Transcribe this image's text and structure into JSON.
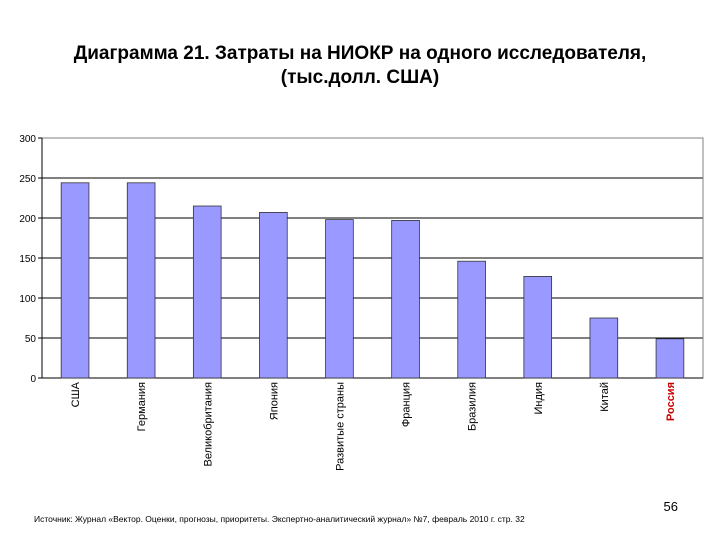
{
  "title_line1": "Диаграмма 21. Затраты на НИОКР на одного исследователя,",
  "title_line2": "(тыс.долл. США)",
  "page_number": "56",
  "source": "Источник: Журнал «Вектор. Оценки, прогнозы, приоритеты. Экспертно-аналитический журнал» №7, февраль 2010 г. стр. 32",
  "colors": {
    "bar_fill": "#9999FF",
    "bar_stroke": "#333333",
    "highlight_label": "#CC0000",
    "plot_border": "#808080",
    "grid": "#000000"
  },
  "chart_data": {
    "type": "bar",
    "title": "Диаграмма 21. Затраты на НИОКР на одного исследователя, (тыс.долл. США)",
    "xlabel": "",
    "ylabel": "",
    "ylim": [
      0,
      300
    ],
    "yticks": [
      0,
      50,
      100,
      150,
      200,
      250,
      300
    ],
    "grid": true,
    "legend": "none",
    "categories": [
      "США",
      "Германия",
      "Великобритания",
      "Япония",
      "Развитые страны",
      "Франция",
      "Бразилия",
      "Индия",
      "Китай",
      "Россия"
    ],
    "values": [
      244,
      244,
      215,
      207,
      198,
      197,
      146,
      127,
      75,
      49
    ],
    "highlighted_category": "Россия"
  }
}
